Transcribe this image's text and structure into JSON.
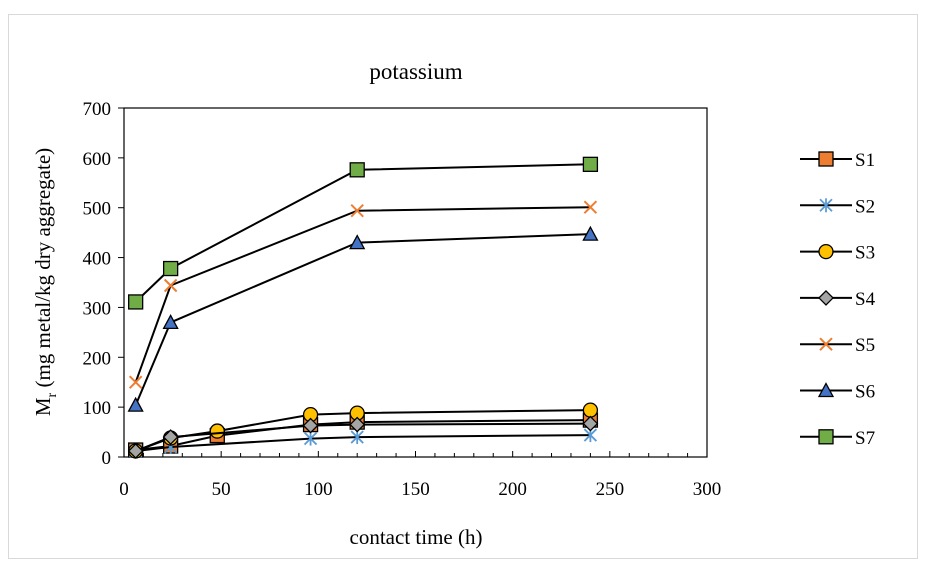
{
  "chart_data": {
    "type": "line",
    "title": "potassium",
    "xlabel": "contact time (h)",
    "ylabel_main": "M",
    "ylabel_sub": "r",
    "ylabel_rest": " (mg metal/kg dry aggregate)",
    "xlim": [
      0,
      300
    ],
    "ylim": [
      0,
      700
    ],
    "xticks": [
      "0",
      "50",
      "100",
      "150",
      "200",
      "250",
      "300"
    ],
    "yticks": [
      "0",
      "100",
      "200",
      "300",
      "400",
      "500",
      "600",
      "700"
    ],
    "grid": false,
    "legend_position": "right",
    "series": [
      {
        "name": "S1",
        "marker": "square",
        "color": "#ED7D31",
        "x": [
          6,
          24,
          48,
          96,
          120,
          240
        ],
        "y": [
          14,
          22,
          43,
          65,
          70,
          74
        ]
      },
      {
        "name": "S2",
        "marker": "asterisk",
        "color": "#5B9BD5",
        "x": [
          6,
          24,
          96,
          120,
          240
        ],
        "y": [
          12,
          20,
          37,
          40,
          44
        ]
      },
      {
        "name": "S3",
        "marker": "circle",
        "color": "#FFC000",
        "x": [
          6,
          24,
          48,
          96,
          120,
          240
        ],
        "y": [
          12,
          38,
          52,
          85,
          88,
          94
        ]
      },
      {
        "name": "S4",
        "marker": "diamond",
        "color": "#A5A5A5",
        "x": [
          6,
          24,
          96,
          120,
          240
        ],
        "y": [
          12,
          40,
          63,
          65,
          67
        ]
      },
      {
        "name": "S5",
        "marker": "x",
        "color": "#ED7D31",
        "x": [
          6,
          24,
          120,
          240
        ],
        "y": [
          150,
          344,
          494,
          501
        ]
      },
      {
        "name": "S6",
        "marker": "triangle",
        "color": "#4472C4",
        "x": [
          6,
          24,
          120,
          240
        ],
        "y": [
          104,
          270,
          430,
          447
        ]
      },
      {
        "name": "S7",
        "marker": "square",
        "color": "#70AD47",
        "x": [
          6,
          24,
          120,
          240
        ],
        "y": [
          311,
          378,
          576,
          587
        ]
      }
    ]
  }
}
